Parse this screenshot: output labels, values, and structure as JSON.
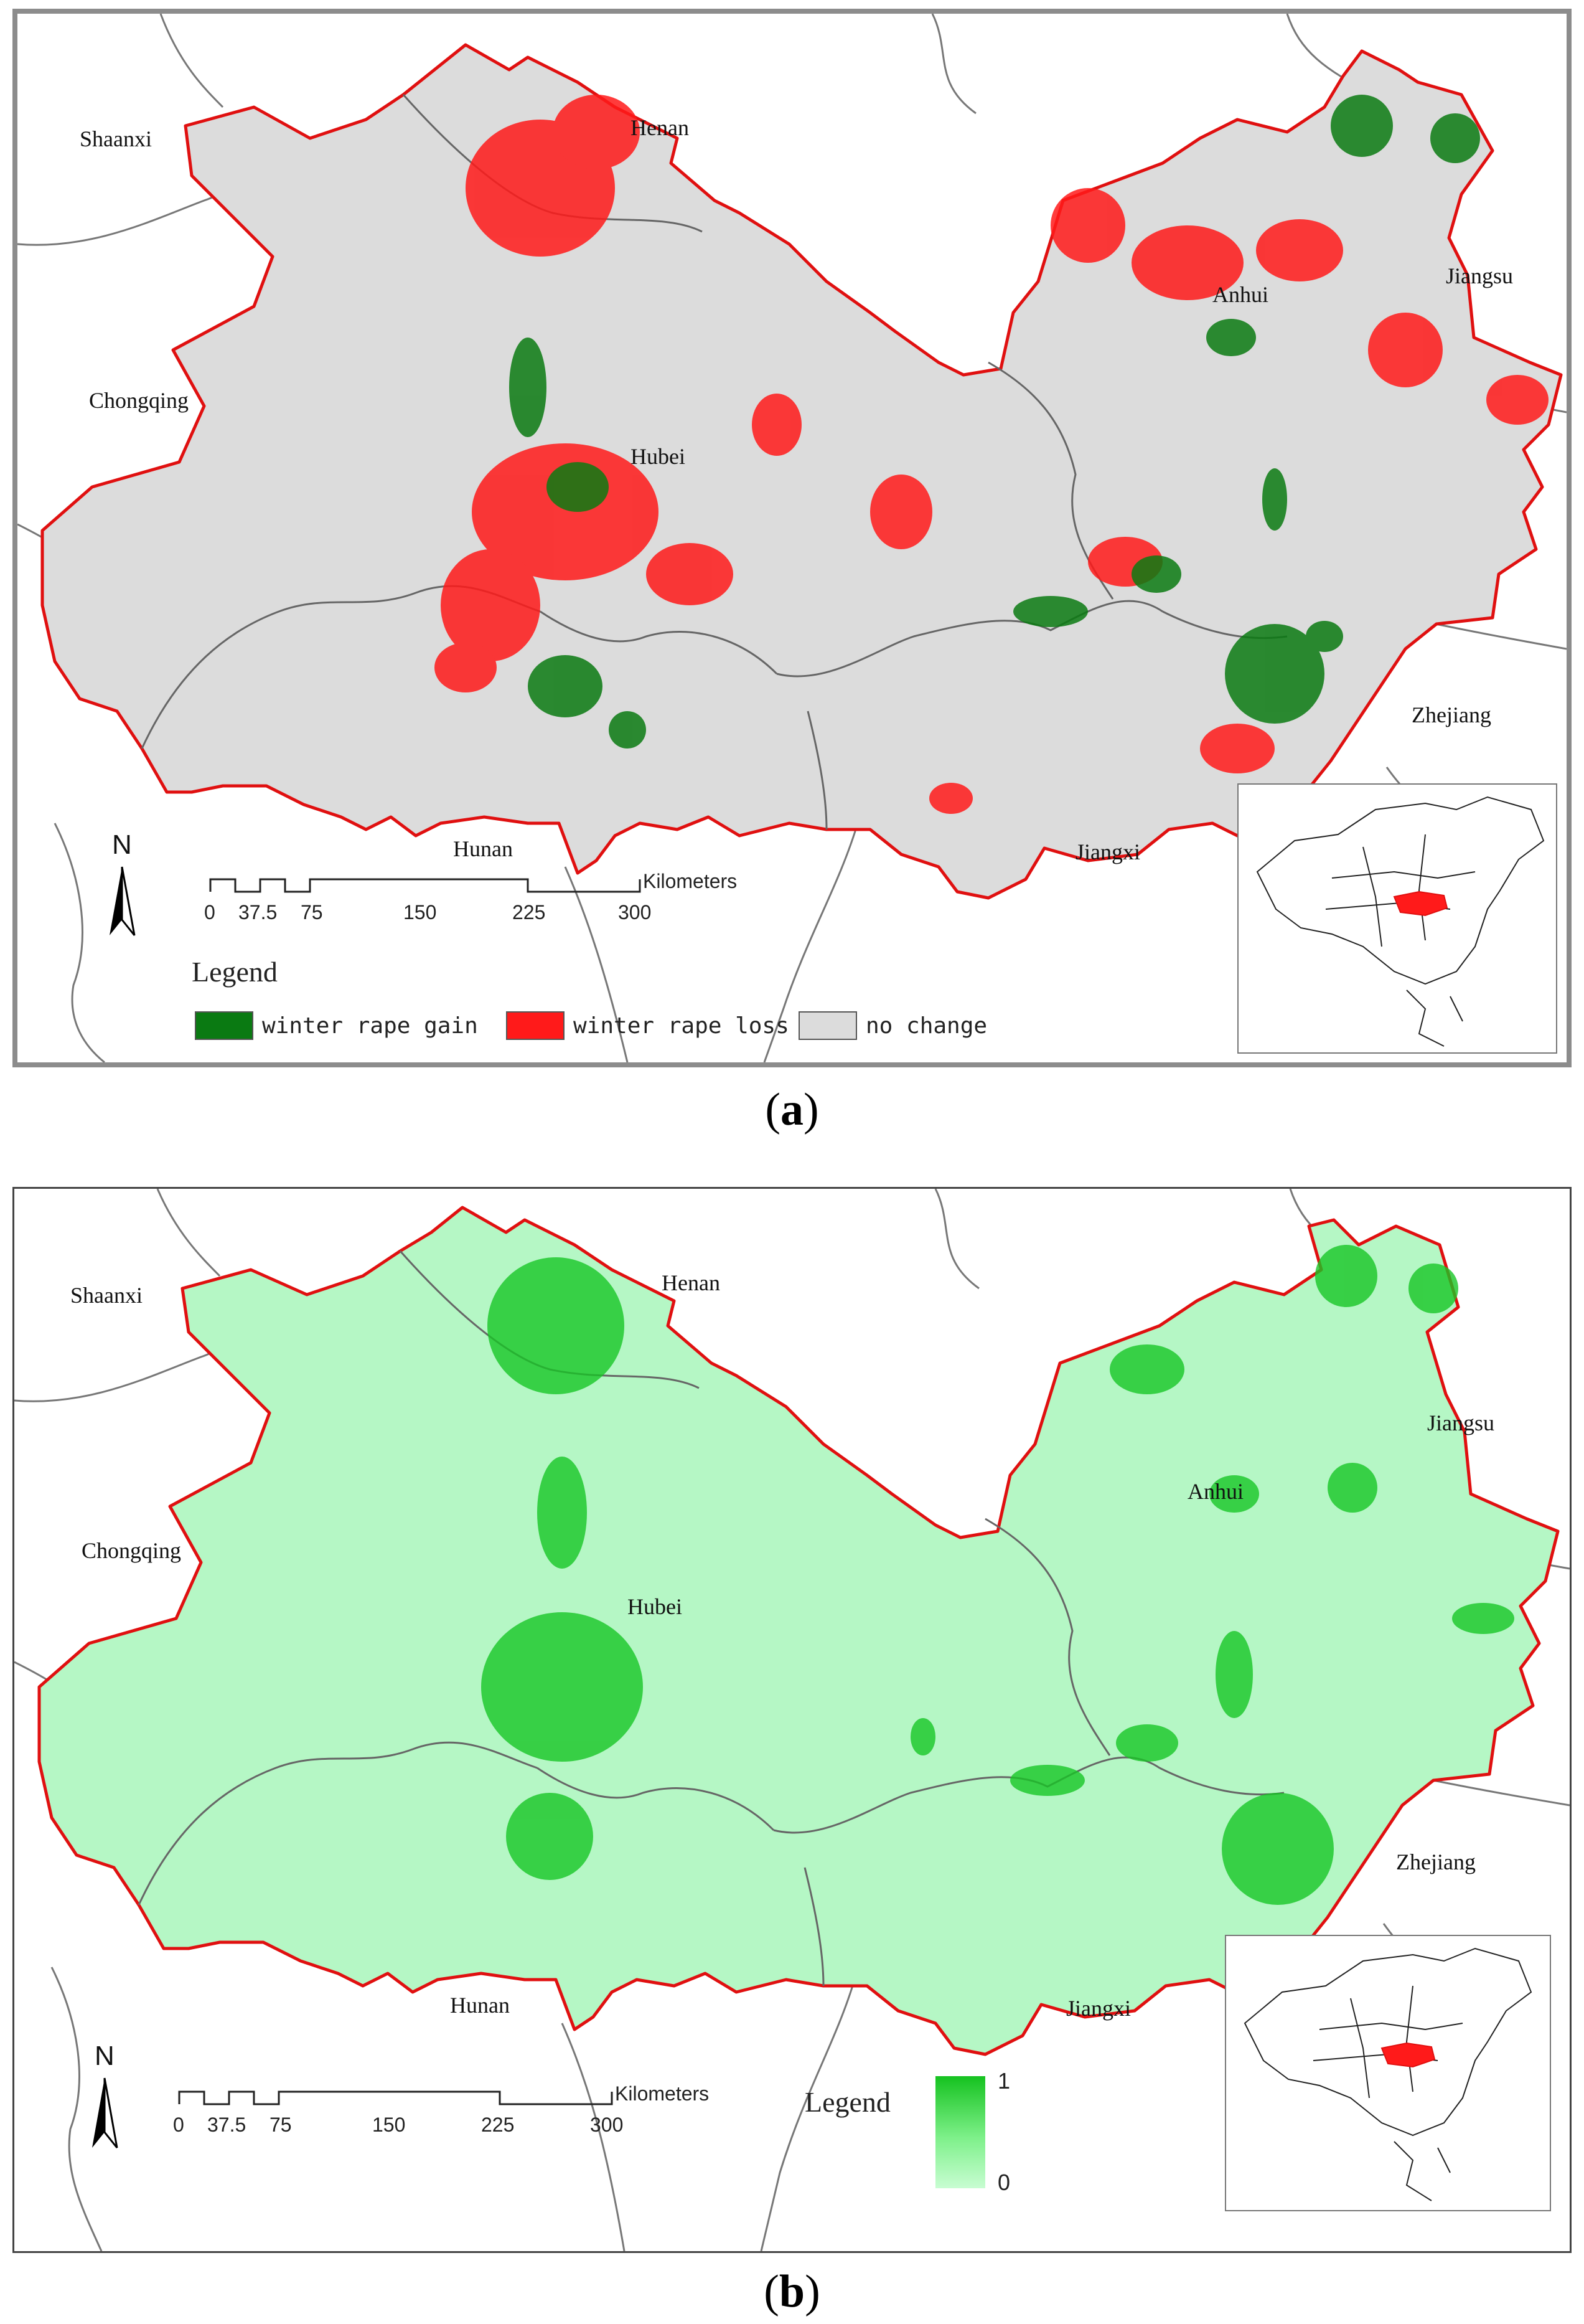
{
  "panels": [
    {
      "caption_letter": "a",
      "provinces": [
        "Shaanxi",
        "Henan",
        "Jiangsu",
        "Anhui",
        "Chongqing",
        "Hubei",
        "Zhejiang",
        "Hunan",
        "Jiangxi"
      ],
      "scale": {
        "ticks": [
          "0",
          "37.5",
          "75",
          "150",
          "225",
          "300"
        ],
        "unit": "Kilometers"
      },
      "north": "N",
      "legend": {
        "title": "Legend",
        "items": [
          {
            "label": "winter rape gain",
            "color": "#0a7a12"
          },
          {
            "label": "winter rape loss",
            "color": "#ff1a1a"
          },
          {
            "label": "no change",
            "color": "#dcdcdc"
          }
        ]
      }
    },
    {
      "caption_letter": "b",
      "provinces": [
        "Shaanxi",
        "Henan",
        "Jiangsu",
        "Anhui",
        "Chongqing",
        "Hubei",
        "Zhejiang",
        "Hunan",
        "Jiangxi"
      ],
      "scale": {
        "ticks": [
          "0",
          "37.5",
          "75",
          "150",
          "225",
          "300"
        ],
        "unit": "Kilometers"
      },
      "north": "N",
      "legend": {
        "title": "Legend",
        "ramp_max": "1",
        "ramp_min": "0",
        "ramp_colors": [
          "#15c21f",
          "#c8fdd2"
        ]
      }
    }
  ],
  "colors": {
    "study_border": "#e01010",
    "background_region_a": "#dcdcdc",
    "background_region_b": "#b5f7c5",
    "gain": "#0a7a12",
    "loss": "#ff1a1a",
    "dense_green": "#18c626"
  }
}
